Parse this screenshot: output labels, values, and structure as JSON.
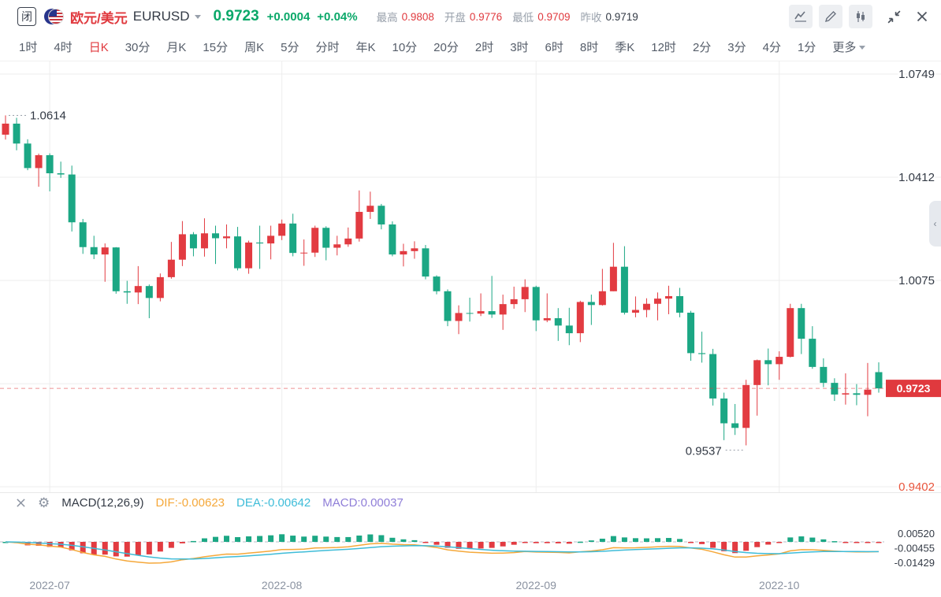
{
  "header": {
    "market_status_badge": "闭",
    "pair_name_cn": "欧元/美元",
    "symbol": "EURUSD",
    "price": "0.9723",
    "change": "+0.0004",
    "change_pct": "+0.04%",
    "stats": [
      {
        "label": "最高",
        "value": "0.9808",
        "color": "#e0393e"
      },
      {
        "label": "开盘",
        "value": "0.9776",
        "color": "#e0393e"
      },
      {
        "label": "最低",
        "value": "0.9709",
        "color": "#e0393e"
      },
      {
        "label": "昨收",
        "value": "0.9719",
        "color": "#333a45"
      }
    ],
    "colors": {
      "title": "#e0393e",
      "price": "#0aa869"
    }
  },
  "tabs": {
    "items": [
      {
        "label": "1时",
        "active": false
      },
      {
        "label": "4时",
        "active": false
      },
      {
        "label": "日K",
        "active": true
      },
      {
        "label": "30分",
        "active": false
      },
      {
        "label": "月K",
        "active": false
      },
      {
        "label": "15分",
        "active": false
      },
      {
        "label": "周K",
        "active": false
      },
      {
        "label": "5分",
        "active": false
      },
      {
        "label": "分时",
        "active": false
      },
      {
        "label": "年K",
        "active": false
      },
      {
        "label": "10分",
        "active": false
      },
      {
        "label": "20分",
        "active": false
      },
      {
        "label": "2时",
        "active": false
      },
      {
        "label": "3时",
        "active": false
      },
      {
        "label": "6时",
        "active": false
      },
      {
        "label": "8时",
        "active": false
      },
      {
        "label": "季K",
        "active": false
      },
      {
        "label": "12时",
        "active": false
      },
      {
        "label": "2分",
        "active": false
      },
      {
        "label": "3分",
        "active": false
      },
      {
        "label": "4分",
        "active": false
      },
      {
        "label": "1分",
        "active": false
      }
    ],
    "more_label": "更多",
    "active_color": "#e0393e"
  },
  "chart_data": {
    "type": "candlestick",
    "symbol": "EURUSD",
    "interval": "日K",
    "colors": {
      "up": "#e23b41",
      "down": "#1ba784"
    },
    "y_axis": {
      "max": 1.079,
      "min": 0.9384,
      "gridlines": [
        1.0749,
        1.0412,
        1.0075,
        0.9738,
        0.9402
      ],
      "labels": [
        {
          "text": "1.0749",
          "value": 1.0749,
          "color": "#333a45"
        },
        {
          "text": "1.0412",
          "value": 1.0412,
          "color": "#333a45"
        },
        {
          "text": "1.0075",
          "value": 1.0075,
          "color": "#333a45"
        },
        {
          "text": "0.9402",
          "value": 0.9402,
          "color": "#e8553d"
        }
      ]
    },
    "x_axis": {
      "months": [
        {
          "label": "2022-07",
          "index": 4
        },
        {
          "label": "2022-08",
          "index": 25
        },
        {
          "label": "2022-09",
          "index": 48
        },
        {
          "label": "2022-10",
          "index": 70
        }
      ]
    },
    "current_price_line": {
      "value": 0.9723,
      "label": "0.9723",
      "color": "#e0393e"
    },
    "annotations": {
      "high": {
        "text": "1.0614",
        "value": 1.0614,
        "index": 0
      },
      "low": {
        "text": "0.9537",
        "value": 0.9537,
        "index": 67
      }
    },
    "ohlc_order": [
      "open",
      "high",
      "low",
      "close"
    ],
    "candles": [
      [
        1.0551,
        1.0614,
        1.0535,
        1.0587
      ],
      [
        1.0587,
        1.0606,
        1.05,
        1.0522
      ],
      [
        1.0522,
        1.0536,
        1.0435,
        1.0442
      ],
      [
        1.0442,
        1.0489,
        1.0381,
        1.0484
      ],
      [
        1.0484,
        1.049,
        1.0366,
        1.0425
      ],
      [
        1.0425,
        1.0463,
        1.041,
        1.0421
      ],
      [
        1.0421,
        1.045,
        1.0235,
        1.0265
      ],
      [
        1.0265,
        1.0276,
        1.0162,
        1.0184
      ],
      [
        1.0184,
        1.0221,
        1.0145,
        1.016
      ],
      [
        1.016,
        1.0196,
        1.0071,
        1.0183
      ],
      [
        1.0183,
        1.0184,
        1.0032,
        1.004
      ],
      [
        1.004,
        1.0074,
        0.9999,
        1.0036
      ],
      [
        1.0036,
        1.0122,
        0.9998,
        1.0057
      ],
      [
        1.0057,
        1.0062,
        0.9952,
        1.0018
      ],
      [
        1.0018,
        1.0098,
        1.0007,
        1.0086
      ],
      [
        1.0086,
        1.0201,
        1.0081,
        1.0143
      ],
      [
        1.0143,
        1.0269,
        1.0122,
        1.0226
      ],
      [
        1.0226,
        1.0233,
        1.0154,
        1.018
      ],
      [
        1.018,
        1.0278,
        1.0153,
        1.0229
      ],
      [
        1.0229,
        1.0254,
        1.0129,
        1.0213
      ],
      [
        1.0213,
        1.0258,
        1.018,
        1.0219
      ],
      [
        1.0219,
        1.025,
        1.0108,
        1.0115
      ],
      [
        1.0115,
        1.0205,
        1.0097,
        1.0199
      ],
      [
        1.0199,
        1.0254,
        1.0113,
        1.0196
      ],
      [
        1.0196,
        1.0254,
        1.0144,
        1.0221
      ],
      [
        1.0221,
        1.0274,
        1.0207,
        1.0261
      ],
      [
        1.0261,
        1.0293,
        1.0154,
        1.0165
      ],
      [
        1.0165,
        1.0209,
        1.0123,
        1.0166
      ],
      [
        1.0166,
        1.0254,
        1.0152,
        1.0247
      ],
      [
        1.0247,
        1.0252,
        1.0141,
        1.0182
      ],
      [
        1.0182,
        1.0221,
        1.0157,
        1.0193
      ],
      [
        1.0193,
        1.0248,
        1.0185,
        1.0212
      ],
      [
        1.0212,
        1.0369,
        1.0202,
        1.0299
      ],
      [
        1.0299,
        1.0365,
        1.0276,
        1.0319
      ],
      [
        1.0319,
        1.0325,
        1.0242,
        1.0258
      ],
      [
        1.0258,
        1.0268,
        1.0154,
        1.016
      ],
      [
        1.016,
        1.0195,
        1.0121,
        1.0171
      ],
      [
        1.0171,
        1.0203,
        1.0146,
        1.018
      ],
      [
        1.018,
        1.0191,
        1.0079,
        1.0088
      ],
      [
        1.0088,
        1.0092,
        1.003,
        1.004
      ],
      [
        1.004,
        1.0046,
        0.9926,
        0.9943
      ],
      [
        0.9943,
        0.9994,
        0.99,
        0.9969
      ],
      [
        0.9969,
        1.0019,
        0.9941,
        0.9967
      ],
      [
        0.9967,
        1.0033,
        0.9959,
        0.9975
      ],
      [
        0.9975,
        1.009,
        0.9953,
        0.9964
      ],
      [
        0.9964,
        1.0029,
        0.9914,
        0.9998
      ],
      [
        0.9998,
        1.0055,
        0.9983,
        1.0014
      ],
      [
        1.0014,
        1.0079,
        0.9972,
        1.0054
      ],
      [
        1.0054,
        1.0058,
        0.991,
        0.9945
      ],
      [
        0.9945,
        1.0033,
        0.9939,
        0.9952
      ],
      [
        0.9952,
        0.9985,
        0.9878,
        0.9928
      ],
      [
        0.9928,
        0.9986,
        0.9864,
        0.9903
      ],
      [
        0.9903,
        1.0009,
        0.9874,
        1.0005
      ],
      [
        1.0005,
        1.0029,
        0.993,
        0.9995
      ],
      [
        0.9995,
        1.0113,
        0.9993,
        1.004
      ],
      [
        1.004,
        1.0198,
        1.004,
        1.012
      ],
      [
        1.012,
        1.0187,
        0.9964,
        0.997
      ],
      [
        0.997,
        1.0023,
        0.9955,
        0.9979
      ],
      [
        0.9979,
        1.0017,
        0.9955,
        0.9999
      ],
      [
        0.9999,
        1.0036,
        0.9945,
        1.0016
      ],
      [
        1.0016,
        1.0058,
        0.9965,
        1.0024
      ],
      [
        1.0024,
        1.0051,
        0.9955,
        0.997
      ],
      [
        0.997,
        0.9976,
        0.9813,
        0.9838
      ],
      [
        0.9838,
        0.9908,
        0.9807,
        0.9835
      ],
      [
        0.9835,
        0.9852,
        0.9667,
        0.969
      ],
      [
        0.969,
        0.9709,
        0.9554,
        0.9609
      ],
      [
        0.9609,
        0.9672,
        0.9571,
        0.9594
      ],
      [
        0.9594,
        0.9751,
        0.9537,
        0.9734
      ],
      [
        0.9734,
        0.9817,
        0.9634,
        0.9815
      ],
      [
        0.9815,
        0.9853,
        0.9733,
        0.9802
      ],
      [
        0.9802,
        0.9844,
        0.9751,
        0.9826
      ],
      [
        0.9826,
        0.9999,
        0.9824,
        0.9985
      ],
      [
        0.9985,
        0.9999,
        0.9835,
        0.9885
      ],
      [
        0.9885,
        0.9926,
        0.9787,
        0.9793
      ],
      [
        0.9793,
        0.9821,
        0.9727,
        0.9741
      ],
      [
        0.9741,
        0.9756,
        0.9682,
        0.9703
      ],
      [
        0.9703,
        0.9772,
        0.967,
        0.9707
      ],
      [
        0.9707,
        0.9737,
        0.9668,
        0.9702
      ],
      [
        0.9702,
        0.9806,
        0.9632,
        0.9719
      ],
      [
        0.9776,
        0.9808,
        0.9709,
        0.9723
      ]
    ]
  },
  "macd": {
    "title": "MACD(12,26,9)",
    "params": [
      12,
      26,
      9
    ],
    "dif_label": "DIF:-0.00623",
    "dea_label": "DEA:-0.00642",
    "macd_label": "MACD:0.00037",
    "axis_labels": [
      "0.00520",
      "-0.00455",
      "-0.01429"
    ],
    "axis_values": [
      0.0052,
      -0.00455,
      -0.01429
    ],
    "colors": {
      "dif": "#f5a83a",
      "dea": "#3ebcd8",
      "macd_text": "#8f7ed8",
      "pos": "#1ba784",
      "neg": "#e23b41"
    }
  },
  "side_toggle_chevron": "‹"
}
